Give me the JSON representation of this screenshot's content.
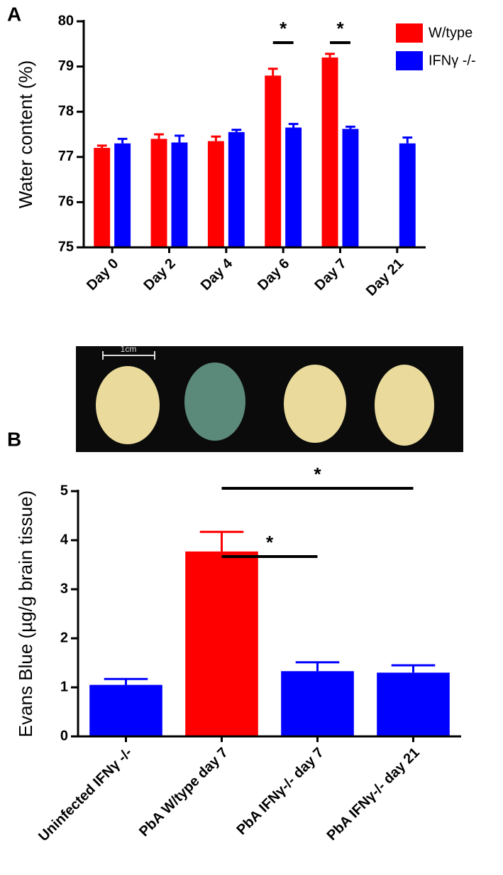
{
  "chart_data": [
    {
      "type": "bar",
      "panel_label": "A",
      "ylabel": "Water content (%)",
      "categories": [
        "Day 0",
        "Day 2",
        "Day 4",
        "Day 6",
        "Day 7",
        "Day 21"
      ],
      "series": [
        {
          "name": "W/type",
          "color": "#ff0000",
          "values": [
            77.2,
            77.4,
            77.35,
            78.8,
            79.2,
            null
          ],
          "errors": [
            0.05,
            0.1,
            0.1,
            0.15,
            0.08,
            null
          ]
        },
        {
          "name": "IFNγ -/-",
          "color": "#0000ff",
          "values": [
            77.3,
            77.32,
            77.55,
            77.65,
            77.62,
            77.3
          ],
          "errors": [
            0.1,
            0.15,
            0.05,
            0.08,
            0.05,
            0.13
          ]
        }
      ],
      "ylim": [
        75,
        80
      ],
      "yticks": [
        75,
        76,
        77,
        78,
        79,
        80
      ],
      "legend": "upper right",
      "annotations": [
        "*",
        "*"
      ]
    },
    {
      "type": "bar",
      "panel_label": "B",
      "ylabel": "Evans Blue (µg/g brain tissue)",
      "categories": [
        "Uninfected IFNγ -/-",
        "PbA W/type day 7",
        "PbA IFNγ-/- day 7",
        "PbA IFNγ-/- day 21"
      ],
      "values": [
        1.05,
        3.77,
        1.33,
        1.3
      ],
      "errors": [
        0.12,
        0.4,
        0.18,
        0.15
      ],
      "colors": [
        "#0000ff",
        "#ff0000",
        "#0000ff",
        "#0000ff"
      ],
      "ylim": [
        0,
        5
      ],
      "yticks": [
        0,
        1,
        2,
        3,
        4,
        5
      ],
      "annotations": [
        "*",
        "*"
      ]
    }
  ],
  "image": {
    "scale_label": "1cm"
  }
}
